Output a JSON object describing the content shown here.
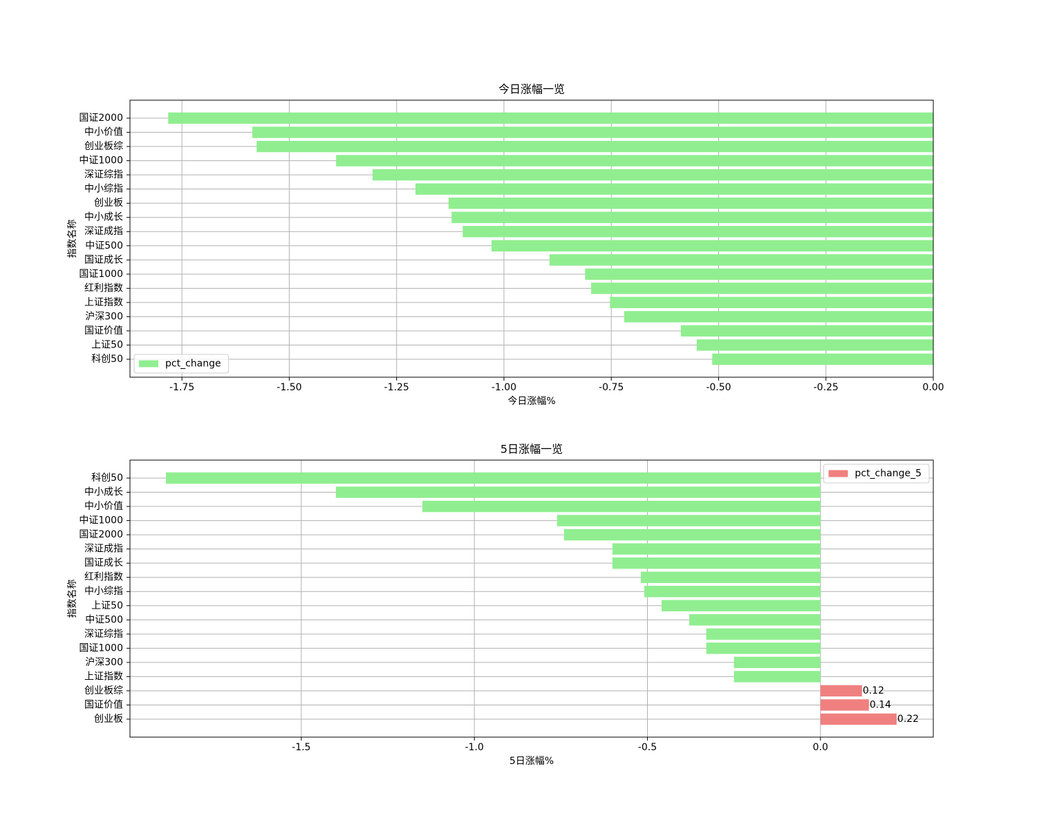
{
  "chart_data": [
    {
      "type": "barh",
      "title": "今日涨幅一览",
      "xlabel": "今日涨幅%",
      "ylabel": "指数名称",
      "categories": [
        "国证2000",
        "中小价值",
        "创业板综",
        "中证1000",
        "深证综指",
        "中小综指",
        "创业板",
        "中小成长",
        "深证成指",
        "中证500",
        "国证成长",
        "国证1000",
        "红利指数",
        "上证指数",
        "沪深300",
        "国证价值",
        "上证50",
        "科创50"
      ],
      "series": [
        {
          "name": "pct_change",
          "values": [
            -1.782,
            -1.586,
            -1.576,
            -1.391,
            -1.306,
            -1.206,
            -1.129,
            -1.122,
            -1.096,
            -1.029,
            -0.894,
            -0.811,
            -0.797,
            -0.753,
            -0.72,
            -0.588,
            -0.551,
            -0.515
          ]
        }
      ],
      "colors": {
        "positive": "#f08080",
        "negative": "#90ee90"
      },
      "xlim": [
        -1.871,
        0
      ],
      "xticks": [
        -1.75,
        {
          "value": -1.5,
          "label": "-1.50"
        },
        -1.25,
        {
          "value": -1.0,
          "label": "-1.00"
        },
        -0.75,
        {
          "value": -0.5,
          "label": "-0.50"
        },
        -0.25,
        {
          "value": 0,
          "label": "0.00"
        }
      ],
      "grid": true,
      "legend": "lower left"
    },
    {
      "type": "barh",
      "title": "5日涨幅一览",
      "xlabel": "5日涨幅%",
      "ylabel": "指数名称",
      "categories": [
        "科创50",
        "中小成长",
        "中小价值",
        "中证1000",
        "国证2000",
        "深证成指",
        "国证成长",
        "红利指数",
        "中小综指",
        "上证50",
        "中证500",
        "深证综指",
        "国证1000",
        "沪深300",
        "上证指数",
        "创业板综",
        "国证价值",
        "创业板"
      ],
      "series": [
        {
          "name": "pct_change_5",
          "values": [
            -1.891,
            -1.4,
            -1.15,
            -0.761,
            -0.741,
            -0.601,
            -0.601,
            -0.519,
            -0.509,
            -0.459,
            -0.379,
            -0.33,
            -0.33,
            -0.25,
            -0.25,
            0.12,
            0.14,
            0.22
          ],
          "value_labels": [
            null,
            null,
            null,
            null,
            null,
            null,
            null,
            null,
            null,
            null,
            null,
            null,
            null,
            null,
            null,
            "0.12",
            "0.14",
            "0.22"
          ]
        }
      ],
      "colors": {
        "positive": "#f08080",
        "negative": "#90ee90"
      },
      "xlim": [
        -1.995,
        0.326
      ],
      "xticks": [
        -1.5,
        {
          "value": -1.0,
          "label": "-1.0"
        },
        -0.5,
        {
          "value": 0,
          "label": "0.0"
        }
      ],
      "grid": true,
      "legend": "upper right"
    }
  ]
}
